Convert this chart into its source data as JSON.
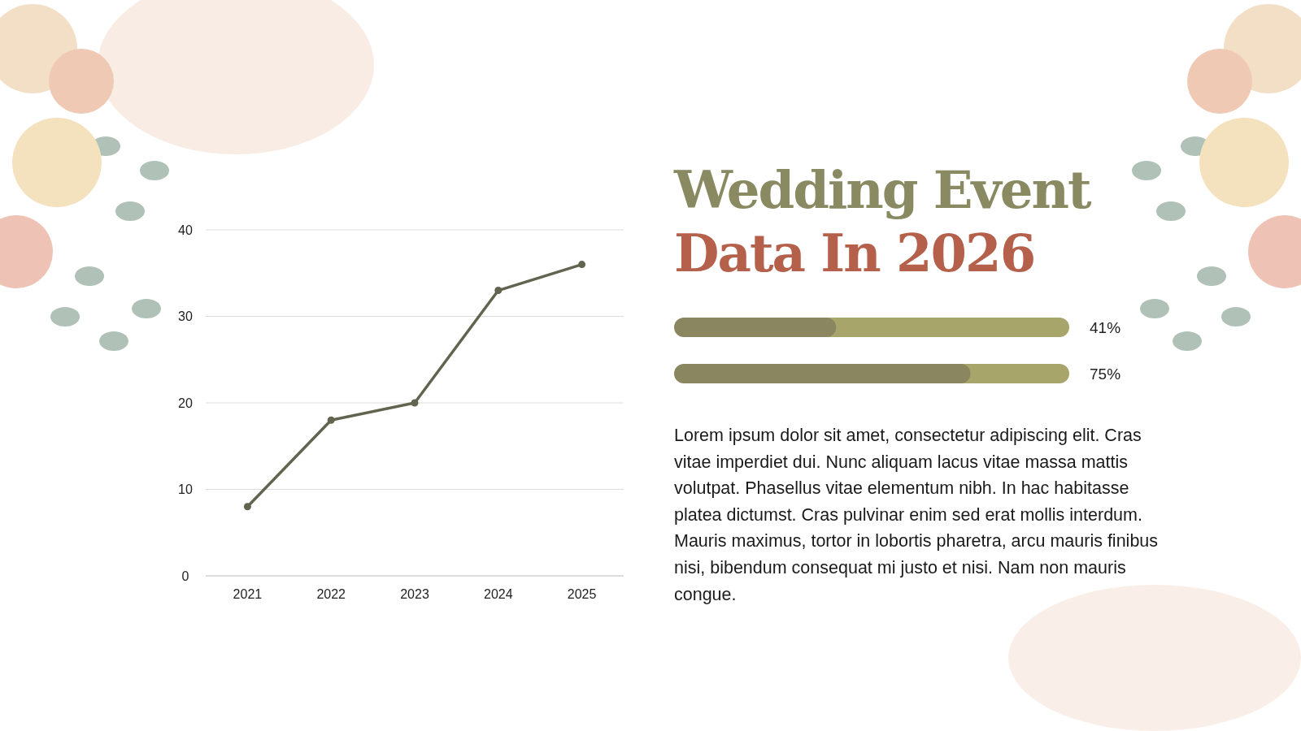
{
  "chart_data": [
    {
      "type": "line",
      "categories": [
        "2021",
        "2022",
        "2023",
        "2024",
        "2025"
      ],
      "series": [
        {
          "color": "#62644f",
          "values": [
            8,
            18,
            20,
            33,
            36
          ]
        }
      ],
      "ylim": [
        0,
        40
      ],
      "yticks": [
        0,
        10,
        20,
        30,
        40
      ],
      "grid": "y",
      "marker": "circle",
      "line_style": "solid"
    },
    {
      "type": "bar",
      "orientation": "horizontal",
      "title": "Wedding Event Data In 2026",
      "categories": [
        null,
        null
      ],
      "values": [
        41,
        75
      ],
      "value_labels": [
        "41%",
        "75%"
      ],
      "color": "#8a8660",
      "xlim": [
        0,
        100
      ],
      "annotations": [
        "Lorem ipsum dolor sit amet, consectetur adipiscing elit. Cras vitae imperdiet dui. Nunc aliquam lacus vitae massa mattis volutpat. Phasellus vitae elementum nibh. In hac habitasse platea dictumst. Cras pulvinar enim sed erat mollis interdum. Mauris maximus, tortor in lobortis pharetra, arcu mauris finibus nisi, bibendum consequat mi justo et nisi. Nam non mauris congue."
      ]
    }
  ]
}
